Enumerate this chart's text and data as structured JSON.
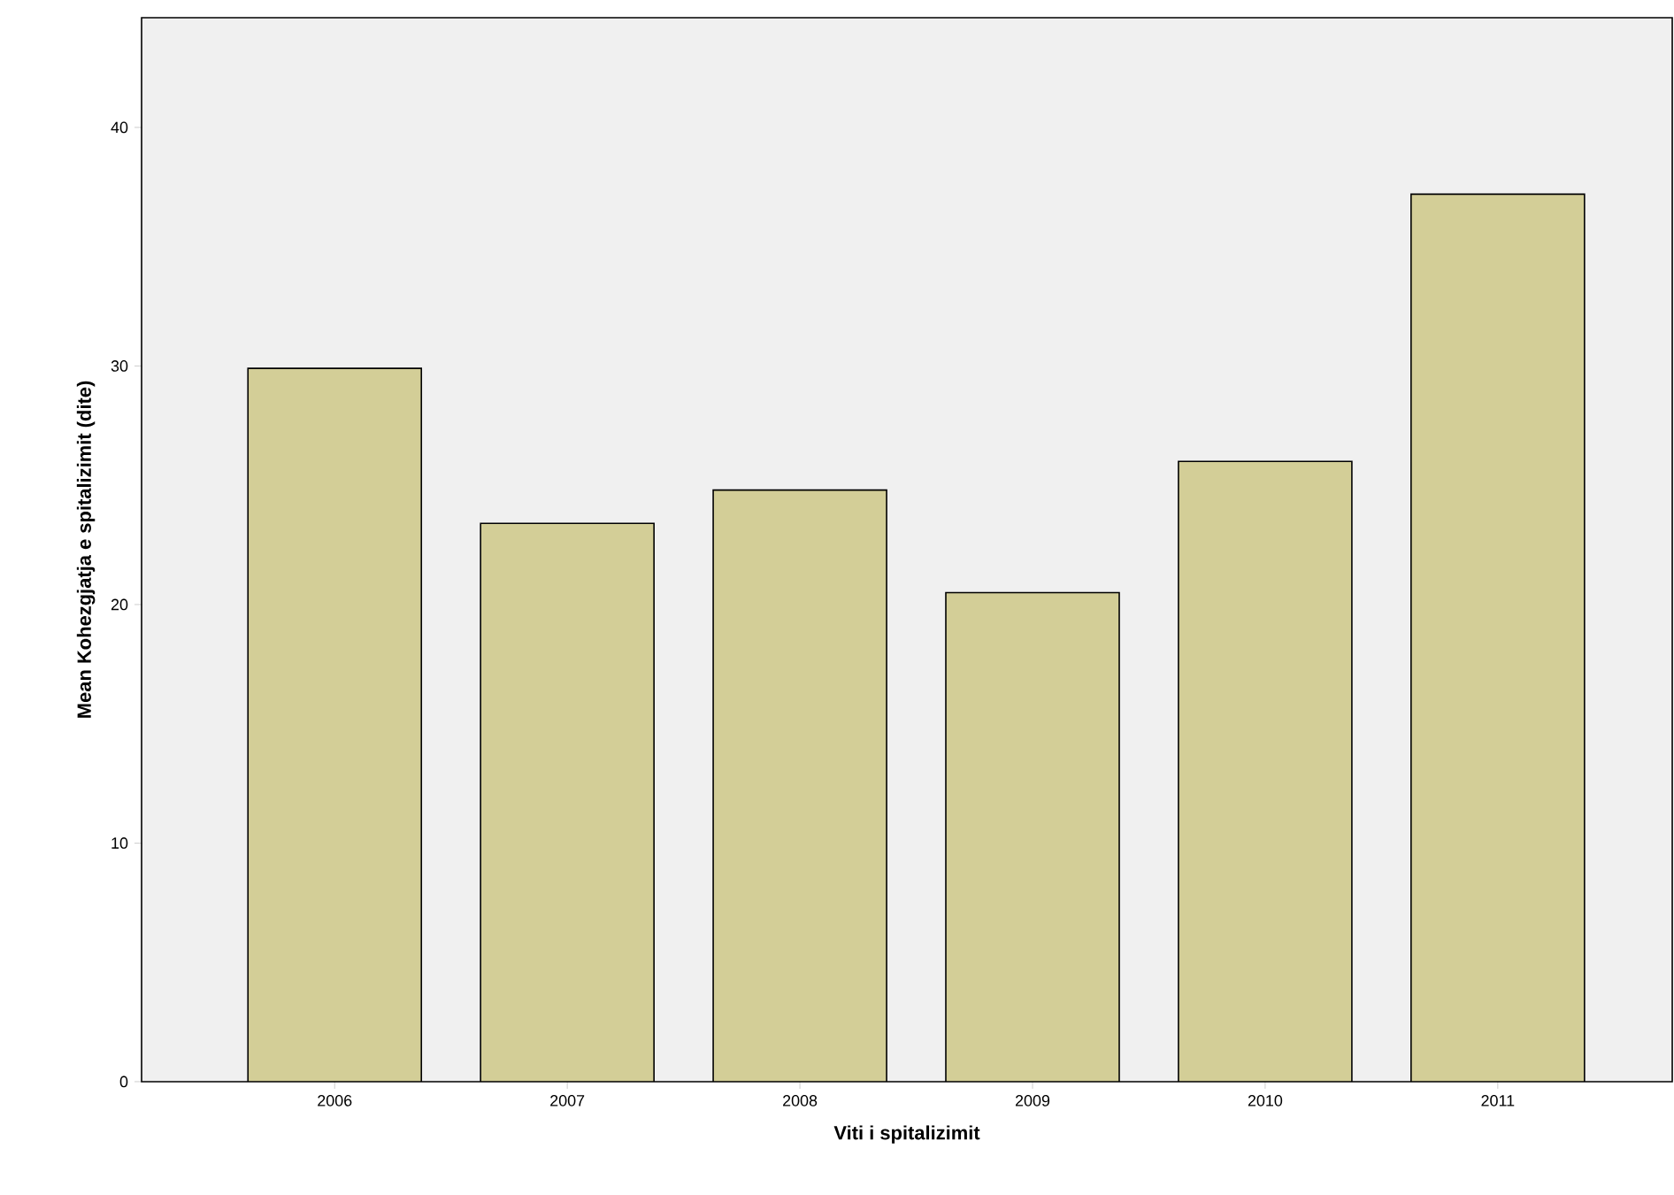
{
  "chart_data": {
    "type": "bar",
    "xlabel": "Viti i spitalizimit",
    "ylabel": "Mean Kohezgjatja e spitalizimit (dite)",
    "categories": [
      "2006",
      "2007",
      "2008",
      "2009",
      "2010",
      "2011"
    ],
    "values": [
      29.9,
      23.4,
      24.8,
      20.5,
      26.0,
      37.2
    ],
    "color": "#d3ce97",
    "ylim": [
      0,
      44.6
    ],
    "yticks": [
      0,
      10,
      20,
      30,
      40
    ],
    "grid": false
  }
}
